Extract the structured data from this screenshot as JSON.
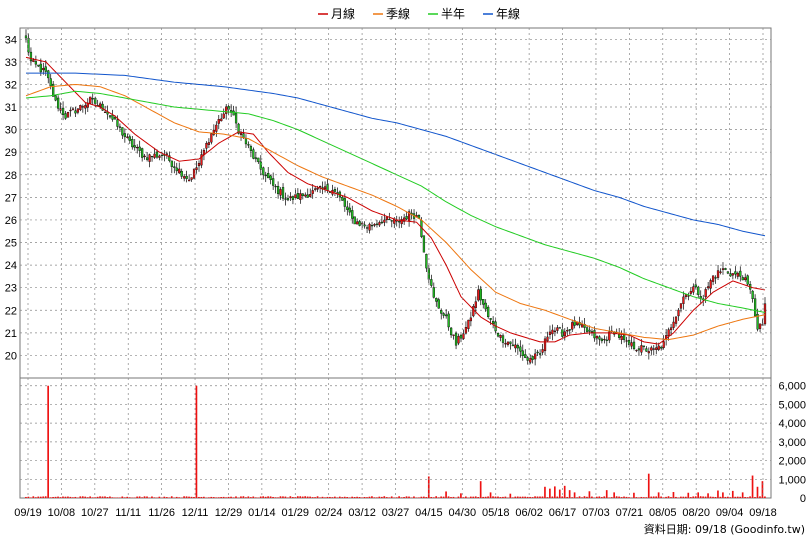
{
  "chart_data": {
    "type": "candlestick",
    "legend": {
      "placement": "top-center",
      "entries": [
        {
          "name": "月線",
          "color": "#cc0000"
        },
        {
          "name": "季線",
          "color": "#ee7711"
        },
        {
          "name": "半年",
          "color": "#22cc22"
        },
        {
          "name": "年線",
          "color": "#1155cc"
        }
      ]
    },
    "price_axis": {
      "min": 19,
      "max": 34.5,
      "ticks": [
        20,
        21,
        22,
        23,
        24,
        25,
        26,
        27,
        28,
        29,
        30,
        31,
        32,
        33,
        34
      ]
    },
    "volume_axis": {
      "min": 0,
      "max": 6200,
      "ticks": [
        0,
        1000,
        2000,
        3000,
        4000,
        5000,
        6000
      ],
      "tick_labels": [
        "0",
        "1,000",
        "2,000",
        "3,000",
        "4,000",
        "5,000",
        "6,000"
      ]
    },
    "x_labels": [
      "09/19",
      "10/08",
      "10/27",
      "11/11",
      "11/26",
      "12/11",
      "12/29",
      "01/14",
      "01/29",
      "02/24",
      "03/12",
      "03/27",
      "04/15",
      "04/30",
      "05/18",
      "06/02",
      "06/17",
      "07/03",
      "07/21",
      "08/05",
      "08/20",
      "09/04",
      "09/18"
    ],
    "grid": true,
    "colors": {
      "up": "#e81818",
      "down": "#22bb22",
      "volume": "#ee1111",
      "grid": "#888888"
    },
    "price_keyframes": [
      [
        0,
        34.0
      ],
      [
        2,
        33.0
      ],
      [
        8,
        32.5
      ],
      [
        12,
        31.2
      ],
      [
        16,
        30.6
      ],
      [
        22,
        31.0
      ],
      [
        26,
        31.3
      ],
      [
        32,
        30.9
      ],
      [
        36,
        30.3
      ],
      [
        42,
        29.4
      ],
      [
        48,
        28.8
      ],
      [
        56,
        28.9
      ],
      [
        60,
        28.4
      ],
      [
        66,
        27.8
      ],
      [
        70,
        28.5
      ],
      [
        74,
        29.6
      ],
      [
        78,
        30.4
      ],
      [
        82,
        31.0
      ],
      [
        86,
        30.0
      ],
      [
        90,
        29.2
      ],
      [
        94,
        28.4
      ],
      [
        100,
        27.5
      ],
      [
        106,
        26.9
      ],
      [
        112,
        27.1
      ],
      [
        118,
        27.3
      ],
      [
        124,
        27.4
      ],
      [
        128,
        26.8
      ],
      [
        132,
        26.0
      ],
      [
        138,
        25.7
      ],
      [
        144,
        26.0
      ],
      [
        150,
        25.9
      ],
      [
        156,
        26.3
      ],
      [
        159,
        26.1
      ],
      [
        162,
        24.0
      ],
      [
        165,
        22.5
      ],
      [
        170,
        21.6
      ],
      [
        174,
        20.5
      ],
      [
        179,
        21.4
      ],
      [
        183,
        22.8
      ],
      [
        187,
        21.7
      ],
      [
        192,
        20.8
      ],
      [
        198,
        20.4
      ],
      [
        203,
        19.8
      ],
      [
        208,
        20.0
      ],
      [
        212,
        21.2
      ],
      [
        217,
        21.0
      ],
      [
        222,
        21.4
      ],
      [
        228,
        21.0
      ],
      [
        233,
        20.6
      ],
      [
        238,
        21.1
      ],
      [
        243,
        20.5
      ],
      [
        249,
        20.3
      ],
      [
        254,
        20.2
      ],
      [
        258,
        20.5
      ],
      [
        262,
        21.6
      ],
      [
        266,
        22.6
      ],
      [
        270,
        23.0
      ],
      [
        274,
        22.6
      ],
      [
        278,
        23.5
      ],
      [
        282,
        23.8
      ],
      [
        286,
        23.6
      ],
      [
        290,
        23.5
      ],
      [
        294,
        22.6
      ],
      [
        296,
        21.1
      ],
      [
        298,
        21.4
      ],
      [
        299,
        22.3
      ]
    ],
    "moving_averages": [
      {
        "name": "月線",
        "points": [
          [
            0,
            33.2
          ],
          [
            8,
            33.0
          ],
          [
            16,
            32.1
          ],
          [
            24,
            31.2
          ],
          [
            30,
            31.0
          ],
          [
            36,
            30.6
          ],
          [
            44,
            29.8
          ],
          [
            54,
            29.0
          ],
          [
            62,
            28.6
          ],
          [
            70,
            28.7
          ],
          [
            78,
            29.4
          ],
          [
            86,
            29.9
          ],
          [
            92,
            29.8
          ],
          [
            98,
            29.0
          ],
          [
            106,
            28.1
          ],
          [
            114,
            27.6
          ],
          [
            122,
            27.3
          ],
          [
            130,
            27.0
          ],
          [
            140,
            26.4
          ],
          [
            150,
            26.0
          ],
          [
            158,
            25.9
          ],
          [
            164,
            25.2
          ],
          [
            170,
            24.0
          ],
          [
            176,
            22.6
          ],
          [
            184,
            21.7
          ],
          [
            190,
            21.3
          ],
          [
            196,
            21.0
          ],
          [
            202,
            20.8
          ],
          [
            208,
            20.6
          ],
          [
            214,
            20.6
          ],
          [
            220,
            20.9
          ],
          [
            228,
            21.0
          ],
          [
            236,
            21.0
          ],
          [
            244,
            20.9
          ],
          [
            250,
            20.6
          ],
          [
            256,
            20.5
          ],
          [
            262,
            21.0
          ],
          [
            270,
            22.0
          ],
          [
            278,
            22.8
          ],
          [
            286,
            23.3
          ],
          [
            294,
            23.0
          ],
          [
            299,
            22.9
          ]
        ]
      },
      {
        "name": "季線",
        "points": [
          [
            0,
            31.5
          ],
          [
            10,
            31.9
          ],
          [
            20,
            32.0
          ],
          [
            30,
            31.9
          ],
          [
            40,
            31.5
          ],
          [
            50,
            30.9
          ],
          [
            60,
            30.3
          ],
          [
            70,
            29.9
          ],
          [
            80,
            29.8
          ],
          [
            90,
            29.6
          ],
          [
            100,
            29.0
          ],
          [
            110,
            28.4
          ],
          [
            120,
            27.9
          ],
          [
            130,
            27.5
          ],
          [
            140,
            27.1
          ],
          [
            150,
            26.6
          ],
          [
            160,
            26.0
          ],
          [
            170,
            25.0
          ],
          [
            180,
            23.8
          ],
          [
            190,
            22.8
          ],
          [
            200,
            22.3
          ],
          [
            210,
            22.0
          ],
          [
            220,
            21.6
          ],
          [
            230,
            21.2
          ],
          [
            240,
            21.0
          ],
          [
            250,
            20.8
          ],
          [
            260,
            20.7
          ],
          [
            270,
            20.9
          ],
          [
            280,
            21.3
          ],
          [
            290,
            21.6
          ],
          [
            299,
            21.8
          ]
        ]
      },
      {
        "name": "半年",
        "points": [
          [
            0,
            31.4
          ],
          [
            10,
            31.5
          ],
          [
            20,
            31.7
          ],
          [
            30,
            31.6
          ],
          [
            40,
            31.4
          ],
          [
            50,
            31.2
          ],
          [
            60,
            31.0
          ],
          [
            70,
            30.9
          ],
          [
            80,
            30.8
          ],
          [
            90,
            30.7
          ],
          [
            100,
            30.4
          ],
          [
            110,
            30.0
          ],
          [
            120,
            29.5
          ],
          [
            130,
            29.0
          ],
          [
            140,
            28.5
          ],
          [
            150,
            28.0
          ],
          [
            160,
            27.5
          ],
          [
            170,
            26.8
          ],
          [
            180,
            26.2
          ],
          [
            190,
            25.7
          ],
          [
            200,
            25.3
          ],
          [
            210,
            24.9
          ],
          [
            220,
            24.6
          ],
          [
            230,
            24.3
          ],
          [
            240,
            23.9
          ],
          [
            250,
            23.4
          ],
          [
            260,
            23.0
          ],
          [
            270,
            22.6
          ],
          [
            280,
            22.3
          ],
          [
            290,
            22.1
          ],
          [
            299,
            21.9
          ]
        ]
      },
      {
        "name": "年線",
        "points": [
          [
            0,
            32.5
          ],
          [
            20,
            32.5
          ],
          [
            40,
            32.4
          ],
          [
            60,
            32.1
          ],
          [
            80,
            31.9
          ],
          [
            100,
            31.6
          ],
          [
            110,
            31.4
          ],
          [
            120,
            31.1
          ],
          [
            130,
            30.8
          ],
          [
            140,
            30.5
          ],
          [
            150,
            30.3
          ],
          [
            160,
            30.0
          ],
          [
            170,
            29.7
          ],
          [
            180,
            29.3
          ],
          [
            190,
            28.9
          ],
          [
            200,
            28.5
          ],
          [
            210,
            28.1
          ],
          [
            220,
            27.7
          ],
          [
            230,
            27.3
          ],
          [
            240,
            27.0
          ],
          [
            250,
            26.6
          ],
          [
            260,
            26.3
          ],
          [
            270,
            26.0
          ],
          [
            280,
            25.8
          ],
          [
            290,
            25.5
          ],
          [
            299,
            25.3
          ]
        ]
      }
    ],
    "bar_count": 300,
    "volume_base": 60,
    "volume_spikes": [
      [
        9,
        6000
      ],
      [
        69,
        6000
      ],
      [
        163,
        1150
      ],
      [
        170,
        350
      ],
      [
        176,
        250
      ],
      [
        184,
        900
      ],
      [
        188,
        300
      ],
      [
        196,
        230
      ],
      [
        210,
        600
      ],
      [
        212,
        500
      ],
      [
        214,
        620
      ],
      [
        216,
        450
      ],
      [
        218,
        650
      ],
      [
        220,
        420
      ],
      [
        222,
        300
      ],
      [
        228,
        360
      ],
      [
        235,
        420
      ],
      [
        238,
        300
      ],
      [
        246,
        280
      ],
      [
        252,
        1300
      ],
      [
        256,
        300
      ],
      [
        262,
        320
      ],
      [
        268,
        280
      ],
      [
        272,
        300
      ],
      [
        276,
        250
      ],
      [
        280,
        400
      ],
      [
        282,
        300
      ],
      [
        286,
        380
      ],
      [
        290,
        300
      ],
      [
        294,
        1200
      ],
      [
        296,
        600
      ],
      [
        298,
        900
      ]
    ]
  },
  "source_text": "資料日期: 09/18 (Goodinfo.tw)"
}
